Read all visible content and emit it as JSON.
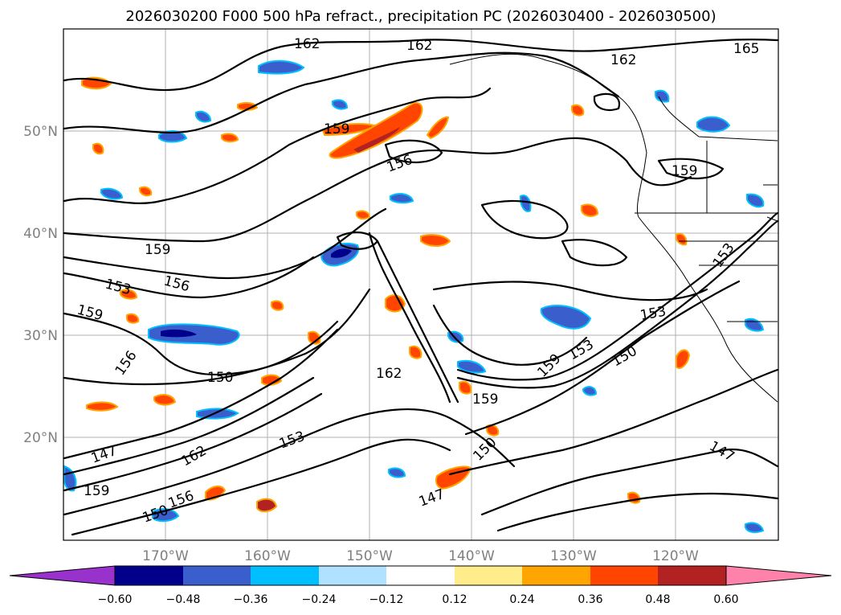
{
  "title": "2026030200 F000 500 hPa refract., precipitation PC (2026030400 - 2026030500)",
  "map": {
    "lon_labels": [
      "170°W",
      "160°W",
      "150°W",
      "140°W",
      "130°W",
      "120°W"
    ],
    "lat_labels": [
      "50°N",
      "40°N",
      "30°N",
      "20°N"
    ]
  },
  "contour_labels": [
    "162",
    "162",
    "162",
    "165",
    "159",
    "159",
    "159",
    "153",
    "156",
    "159",
    "156",
    "150",
    "162",
    "159",
    "159",
    "153",
    "153",
    "150",
    "150",
    "147",
    "162",
    "153",
    "156",
    "150",
    "147",
    "147",
    "159",
    "156",
    "153"
  ],
  "colorbar": {
    "ticks": [
      "−0.60",
      "−0.48",
      "−0.36",
      "−0.24",
      "−0.12",
      "0.12",
      "0.24",
      "0.36",
      "0.48",
      "0.60"
    ],
    "colors": [
      "#9932cc",
      "#00008b",
      "#3a5fcd",
      "#00bfff",
      "#b0e2ff",
      "#ffffff",
      "#ffec8b",
      "#ffa500",
      "#ff4500",
      "#b22222",
      "#ff82ab"
    ]
  },
  "precip_colors": {
    "neg_light": "#b0e2ff",
    "neg_mid": "#00bfff",
    "neg_strong": "#3a5fcd",
    "neg_max": "#00008b",
    "pos_light": "#ffec8b",
    "pos_mid": "#ffa500",
    "pos_strong": "#ff4500",
    "pos_max": "#b22222"
  }
}
